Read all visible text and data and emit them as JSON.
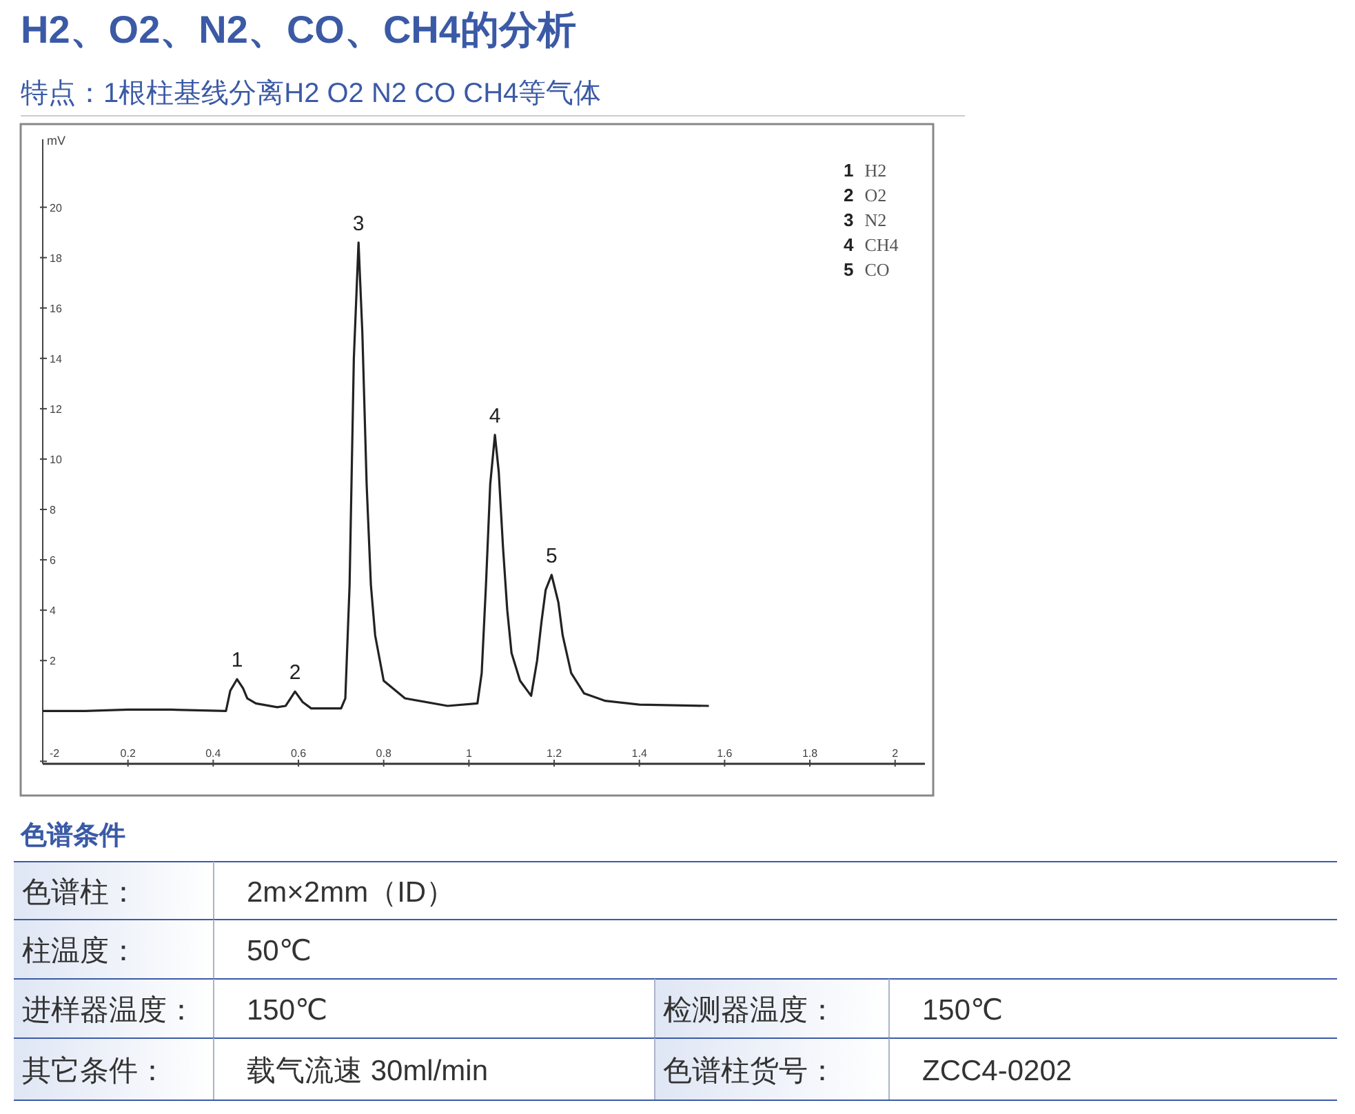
{
  "chart_data": [
    {
      "type": "line",
      "title": "H2、O2、N2、CO、CH4的分析",
      "subtitle": "特点：1根柱基线分离H2 O2 N2 CO CH4等气体",
      "ylabel": "mV",
      "color": "#222222",
      "line_style": "solid",
      "marker": "none",
      "grid": false,
      "x": [
        0,
        0.1,
        0.2,
        0.3,
        0.43,
        0.44,
        0.456,
        0.47,
        0.48,
        0.5,
        0.55,
        0.57,
        0.592,
        0.61,
        0.63,
        0.7,
        0.71,
        0.72,
        0.73,
        0.741,
        0.75,
        0.76,
        0.77,
        0.78,
        0.8,
        0.85,
        0.95,
        1.02,
        1.03,
        1.04,
        1.05,
        1.061,
        1.07,
        1.08,
        1.09,
        1.1,
        1.12,
        1.146,
        1.16,
        1.17,
        1.18,
        1.194,
        1.21,
        1.22,
        1.24,
        1.27,
        1.32,
        1.4,
        1.563
      ],
      "values": [
        0,
        0,
        0.05,
        0.05,
        0,
        0.8,
        1.26,
        0.9,
        0.5,
        0.3,
        0.15,
        0.2,
        0.77,
        0.35,
        0.1,
        0.1,
        0.5,
        5,
        14,
        18.6,
        15,
        9,
        5,
        3,
        1.2,
        0.5,
        0.2,
        0.3,
        1.5,
        5,
        9,
        10.96,
        9.5,
        6.5,
        4,
        2.3,
        1.2,
        0.6,
        2,
        3.5,
        4.8,
        5.4,
        4.3,
        3,
        1.5,
        0.7,
        0.4,
        0.25,
        0.2
      ],
      "xlim": [
        0,
        2.07
      ],
      "ylim": [
        -2.1,
        22.7
      ],
      "xticks": [
        0.2,
        0.4,
        0.6,
        0.8,
        1,
        1.2,
        1.4,
        1.6,
        1.8,
        2
      ],
      "yticks": [
        -2,
        2,
        4,
        6,
        8,
        10,
        12,
        14,
        16,
        18,
        20
      ],
      "annotations": [
        {
          "text": "1",
          "x": 0.456,
          "y": 1.26
        },
        {
          "text": "2",
          "x": 0.592,
          "y": 0.77
        },
        {
          "text": "3",
          "x": 0.741,
          "y": 18.6
        },
        {
          "text": "4",
          "x": 1.061,
          "y": 10.96
        },
        {
          "text": "5",
          "x": 1.194,
          "y": 5.4
        },
        "1 H2",
        "2 O2",
        "3 N2",
        "4 CH4",
        "5 CO"
      ]
    },
    {
      "type": "other",
      "title": "色谱条件",
      "annotations": [
        "色谱柱：",
        "2m×2mm（ID）",
        "柱温度：",
        "50℃",
        "进样器温度：",
        "150℃",
        "检测器温度：",
        "150℃",
        "其它条件：",
        "载气流速 30ml/min",
        "色谱柱货号：",
        "ZCC4-0202"
      ]
    }
  ]
}
